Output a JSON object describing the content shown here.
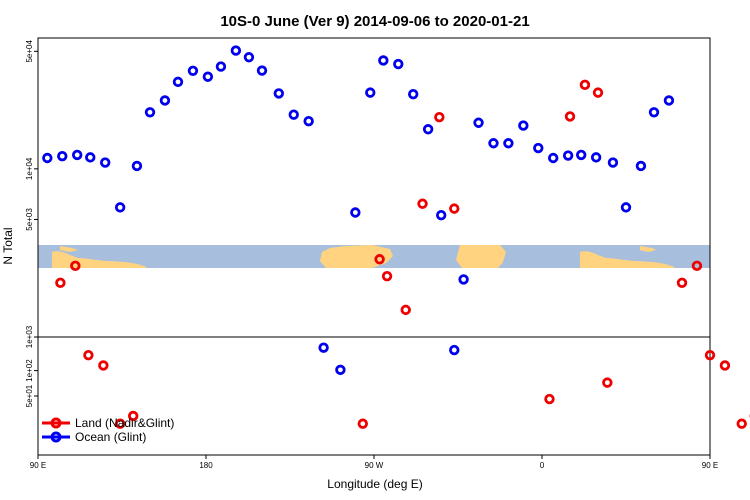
{
  "chart_data": {
    "type": "scatter",
    "title": "10S-0 June (Ver 9)   2014-09-06 to 2020-01-21",
    "xlabel": "Longitude (deg E)",
    "ylabel": "N Total",
    "xlim": [
      90,
      450
    ],
    "x_ticks": [
      {
        "value": 90,
        "label": "90 E"
      },
      {
        "value": 180,
        "label": "180"
      },
      {
        "value": 270,
        "label": "90 W"
      },
      {
        "value": 360,
        "label": "0"
      },
      {
        "value": 450,
        "label": "90 E"
      },
      {
        "value": 540,
        "label": "180"
      }
    ],
    "upper_panel": {
      "scale": "log",
      "ylim": [
        1000,
        60000
      ],
      "y_ticks": [
        {
          "value": 500,
          "label": "5e+02"
        },
        {
          "value": 1000,
          "label": "1e+03"
        },
        {
          "value": 5000,
          "label": "5e+03"
        },
        {
          "value": 10000,
          "label": "1e+04"
        },
        {
          "value": 50000,
          "label": "5e+04"
        },
        {
          "value": 100000,
          "label": "1e+05"
        }
      ]
    },
    "lower_panel": {
      "scale": "log",
      "ylim": [
        10,
        250
      ],
      "y_ticks": [
        {
          "value": 50,
          "label": "5e+01"
        },
        {
          "value": 100,
          "label": "1e+02"
        }
      ]
    },
    "map_strip": {
      "lat_range": "10S-0",
      "land_color": "#FFD37F",
      "ocean_color": "#A7BFDD"
    },
    "legend": {
      "position": "bottom-left",
      "entries": [
        {
          "name": "Land (Nadir&Glint)",
          "color": "#EE0000"
        },
        {
          "name": "Ocean (Glint)",
          "color": "#0000EE"
        }
      ]
    },
    "series": [
      {
        "name": "Ocean (Glint)",
        "color": "#0000EE",
        "points": [
          {
            "x": 95,
            "panel": "upper",
            "y": 11600
          },
          {
            "x": 103,
            "panel": "upper",
            "y": 11900
          },
          {
            "x": 111,
            "panel": "upper",
            "y": 12100
          },
          {
            "x": 118,
            "panel": "upper",
            "y": 11700
          },
          {
            "x": 126,
            "panel": "upper",
            "y": 10900
          },
          {
            "x": 134,
            "panel": "upper",
            "y": 5900
          },
          {
            "x": 143,
            "panel": "upper",
            "y": 10400
          },
          {
            "x": 150,
            "panel": "upper",
            "y": 21700
          },
          {
            "x": 158,
            "panel": "upper",
            "y": 25500
          },
          {
            "x": 165,
            "panel": "upper",
            "y": 32900
          },
          {
            "x": 173,
            "panel": "upper",
            "y": 38300
          },
          {
            "x": 181,
            "panel": "upper",
            "y": 35300
          },
          {
            "x": 188,
            "panel": "upper",
            "y": 40600
          },
          {
            "x": 196,
            "panel": "upper",
            "y": 50500
          },
          {
            "x": 203,
            "panel": "upper",
            "y": 46100
          },
          {
            "x": 210,
            "panel": "upper",
            "y": 38400
          },
          {
            "x": 219,
            "panel": "upper",
            "y": 28100
          },
          {
            "x": 227,
            "panel": "upper",
            "y": 21000
          },
          {
            "x": 235,
            "panel": "upper",
            "y": 19200
          },
          {
            "x": 243,
            "panel": "lower",
            "y": 187
          },
          {
            "x": 252,
            "panel": "lower",
            "y": 102
          },
          {
            "x": 260,
            "panel": "upper",
            "y": 5500
          },
          {
            "x": 268,
            "panel": "upper",
            "y": 28400
          },
          {
            "x": 275,
            "panel": "upper",
            "y": 44100
          },
          {
            "x": 283,
            "panel": "upper",
            "y": 42000
          },
          {
            "x": 291,
            "panel": "upper",
            "y": 27800
          },
          {
            "x": 299,
            "panel": "upper",
            "y": 17200
          },
          {
            "x": 306,
            "panel": "upper",
            "y": 5300
          },
          {
            "x": 313,
            "panel": "lower",
            "y": 175
          },
          {
            "x": 318,
            "panel": "upper",
            "y": 2200
          },
          {
            "x": 326,
            "panel": "upper",
            "y": 18800
          },
          {
            "x": 334,
            "panel": "upper",
            "y": 14200
          },
          {
            "x": 342,
            "panel": "upper",
            "y": 14200
          },
          {
            "x": 350,
            "panel": "upper",
            "y": 18100
          },
          {
            "x": 358,
            "panel": "upper",
            "y": 13300
          },
          {
            "x": 366,
            "panel": "upper",
            "y": 11600
          },
          {
            "x": 374,
            "panel": "upper",
            "y": 12000
          },
          {
            "x": 381,
            "panel": "upper",
            "y": 12100
          },
          {
            "x": 389,
            "panel": "upper",
            "y": 11700
          },
          {
            "x": 398,
            "panel": "upper",
            "y": 10900
          },
          {
            "x": 405,
            "panel": "upper",
            "y": 5900
          },
          {
            "x": 413,
            "panel": "upper",
            "y": 10400
          },
          {
            "x": 420,
            "panel": "upper",
            "y": 21700
          },
          {
            "x": 428,
            "panel": "upper",
            "y": 25500
          }
        ]
      },
      {
        "name": "Land (Nadir&Glint)",
        "color": "#EE0000",
        "points": [
          {
            "x": 102,
            "panel": "upper",
            "y": 2100
          },
          {
            "x": 110,
            "panel": "upper",
            "y": 2650
          },
          {
            "x": 117,
            "panel": "upper",
            "y": 780
          },
          {
            "x": 125,
            "panel": "lower",
            "y": 115
          },
          {
            "x": 134,
            "panel": "upper",
            "y": 305
          },
          {
            "x": 141,
            "panel": "lower",
            "y": 29
          },
          {
            "x": 264,
            "panel": "upper",
            "y": 305
          },
          {
            "x": 273,
            "panel": "upper",
            "y": 2900
          },
          {
            "x": 277,
            "panel": "upper",
            "y": 2300
          },
          {
            "x": 287,
            "panel": "upper",
            "y": 1450
          },
          {
            "x": 296,
            "panel": "upper",
            "y": 6200
          },
          {
            "x": 305,
            "panel": "upper",
            "y": 20300
          },
          {
            "x": 313,
            "panel": "upper",
            "y": 5800
          },
          {
            "x": 364,
            "panel": "lower",
            "y": 46
          },
          {
            "x": 375,
            "panel": "upper",
            "y": 20500
          },
          {
            "x": 383,
            "panel": "upper",
            "y": 31600
          },
          {
            "x": 390,
            "panel": "upper",
            "y": 28400
          },
          {
            "x": 395,
            "panel": "lower",
            "y": 72
          },
          {
            "x": 435,
            "panel": "upper",
            "y": 2100
          },
          {
            "x": 443,
            "panel": "upper",
            "y": 2650
          },
          {
            "x": 450,
            "panel": "upper",
            "y": 780
          },
          {
            "x": 458,
            "panel": "lower",
            "y": 115
          },
          {
            "x": 467,
            "panel": "upper",
            "y": 305
          },
          {
            "x": 474,
            "panel": "lower",
            "y": 29
          }
        ]
      }
    ]
  }
}
